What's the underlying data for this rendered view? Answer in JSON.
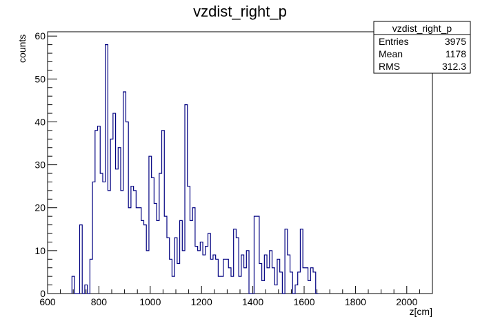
{
  "chart_data": {
    "type": "histogram",
    "title": "vzdist_right_p",
    "xlabel": "z[cm]",
    "ylabel": "counts",
    "xlim": [
      600,
      2100
    ],
    "ylim": [
      0,
      61
    ],
    "xticks": [
      "600",
      "800",
      "1000",
      "1200",
      "1400",
      "1600",
      "1800",
      "2000"
    ],
    "yticks": [
      "0",
      "10",
      "20",
      "30",
      "40",
      "50",
      "60"
    ],
    "bin_start": 695,
    "bin_width": 10,
    "values": [
      4,
      0,
      0,
      16,
      0,
      2,
      0,
      8,
      26,
      38,
      39,
      28,
      26,
      58,
      24,
      36,
      42,
      29,
      34,
      24,
      47,
      40,
      20,
      25,
      24,
      20,
      20,
      17,
      16,
      10,
      32,
      27,
      21,
      17,
      28,
      38,
      18,
      13,
      8,
      4,
      13,
      7,
      17,
      10,
      44,
      25,
      17,
      20,
      11,
      10,
      12,
      9,
      11,
      14,
      8,
      9,
      8,
      4,
      4,
      8,
      8,
      6,
      4,
      15,
      13,
      4,
      9,
      6,
      10,
      0,
      0,
      18,
      18,
      7,
      3,
      9,
      6,
      10,
      6,
      2,
      8,
      5,
      0,
      15,
      9,
      5,
      0,
      2,
      5,
      15,
      6,
      6,
      3,
      6,
      5,
      0
    ],
    "color": "#000080",
    "stats": {
      "name": "vzdist_right_p",
      "rows": [
        {
          "label": "Entries",
          "value": "3975"
        },
        {
          "label": "Mean",
          "value": "1178"
        },
        {
          "label": "RMS",
          "value": "312.3"
        }
      ]
    }
  }
}
